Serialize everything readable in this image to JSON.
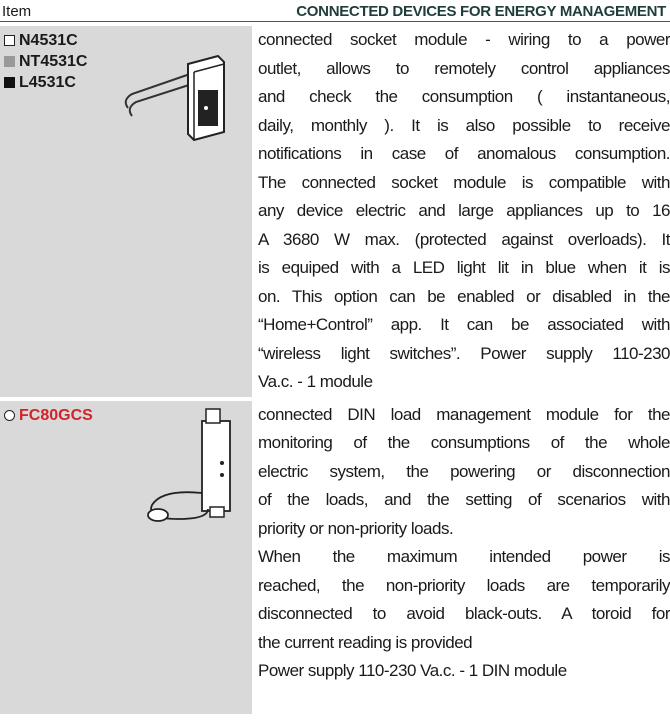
{
  "header": {
    "item": "Item",
    "title": "CONNECTED DEVICES FOR ENERGY MANAGEMENT"
  },
  "rows": [
    {
      "codes": [
        "N4531C",
        "NT4531C",
        "L4531C"
      ],
      "lines": [
        "connected socket module -  wiring to a power",
        "outlet,  allows to remotely control appliances",
        "and check the consumption ( instantaneous,",
        "daily, monthly ). It is also possible to receive",
        "notifications in case of anomalous consumption.",
        "The connected socket module  is compatible with",
        "any device electric and large appliances  up to 16",
        "A 3680 W max.  (protected against overloads). It",
        "is equiped with a LED light lit in blue when it is",
        "on. This option can be enabled or disabled in the",
        "“Home+Control” app. It can be associated with",
        "“wireless light switches”. Power supply 110-230",
        "Va.c. - 1 module"
      ]
    },
    {
      "codes": [
        "FC80GCS"
      ],
      "lines": [
        "connected DIN load management module for the",
        "monitoring of the consumptions of the whole",
        "electric system, the powering or disconnection",
        "of the loads, and the setting of scenarios with",
        "priority or non-priority loads.",
        "When the maximum intended power is",
        "reached, the non-priority loads are temporarily",
        "disconnected to avoid black-outs. A toroid for",
        "the current reading is provided",
        "Power supply 110-230 Va.c. - 1 DIN module"
      ]
    }
  ]
}
